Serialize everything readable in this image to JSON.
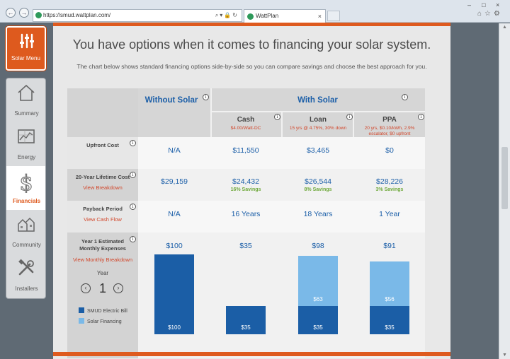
{
  "browser": {
    "url": "https://smud.wattplan.com/",
    "tab_title": "WattPlan",
    "back": "←",
    "forward": "→",
    "address_tools": "⌕▾🔒↻",
    "tab_close": "×",
    "window_controls": [
      "–",
      "□",
      "×"
    ],
    "right_tools": "⌂☆⚙"
  },
  "sidebar": {
    "menu_label": "Solar Menu",
    "items": [
      {
        "label": "Summary",
        "icon": "house-icon"
      },
      {
        "label": "Energy",
        "icon": "chart-icon"
      },
      {
        "label": "Financials",
        "icon": "dollar-icon",
        "active": true
      },
      {
        "label": "Community",
        "icon": "community-icon"
      },
      {
        "label": "Installers",
        "icon": "tools-icon"
      }
    ]
  },
  "main": {
    "headline": "You have options when it comes to financing your solar system.",
    "subline": "The chart below shows standard financing options side-by-side so you can compare savings and choose the best approach for you.",
    "info": "i",
    "columns": {
      "without_solar": "Without Solar",
      "with_solar": "With Solar",
      "cash": {
        "title": "Cash",
        "detail": "$4.00/Watt-DC"
      },
      "loan": {
        "title": "Loan",
        "detail": "15 yrs @ 4.75%, 30% down"
      },
      "ppa": {
        "title": "PPA",
        "detail": "20 yrs, $0.10/kWh, 2.9% escalator, $0 upfront"
      }
    },
    "rows": {
      "upfront": {
        "label": "Upfront Cost",
        "without": "N/A",
        "cash": "$11,550",
        "loan": "$3,465",
        "ppa": "$0"
      },
      "lifetime": {
        "label": "20-Year Lifetime Cost",
        "link": "View Breakdown",
        "without": "$29,159",
        "cash": "$24,432",
        "loan": "$26,544",
        "ppa": "$28,226",
        "cash_savings": "16% Savings",
        "loan_savings": "8% Savings",
        "ppa_savings": "3% Savings"
      },
      "payback": {
        "label": "Payback Period",
        "link": "View Cash Flow",
        "without": "N/A",
        "cash": "16 Years",
        "loan": "18 Years",
        "ppa": "1 Year"
      },
      "monthly": {
        "label": "Year 1 Estimated Monthly Expenses",
        "link": "View Monthly Breakdown",
        "without": "$100",
        "cash": "$35",
        "loan": "$98",
        "ppa": "$91"
      }
    },
    "year": {
      "label": "Year",
      "value": "1",
      "prev": "‹",
      "next": "›"
    },
    "legend": [
      {
        "label": "SMUD Electric Bill",
        "color": "#1b5ea6"
      },
      {
        "label": "Solar Financing",
        "color": "#7ab9e8"
      }
    ],
    "chart_data": {
      "type": "bar",
      "categories": [
        "Without Solar",
        "Cash",
        "Loan",
        "PPA"
      ],
      "series": [
        {
          "name": "SMUD Electric Bill",
          "values": [
            100,
            35,
            35,
            35
          ]
        },
        {
          "name": "Solar Financing",
          "values": [
            0,
            0,
            63,
            56
          ]
        }
      ],
      "totals": [
        100,
        35,
        98,
        91
      ],
      "segment_labels": {
        "electric": [
          "$100",
          "$35",
          "$35",
          "$35"
        ],
        "financing": [
          "",
          "",
          "$63",
          "$56"
        ]
      },
      "ylim": [
        0,
        100
      ],
      "colors": {
        "electric": "#1b5ea6",
        "financing": "#7ab9e8"
      }
    }
  }
}
